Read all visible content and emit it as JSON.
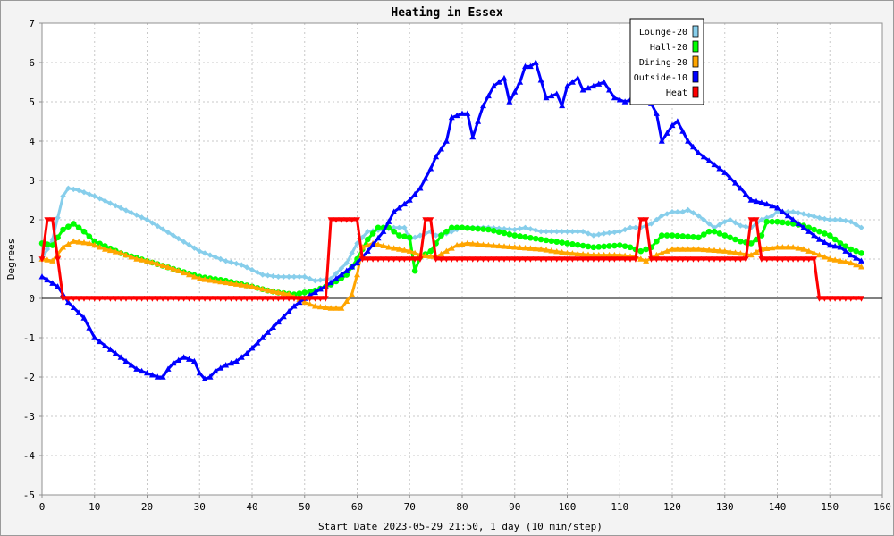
{
  "chart_data": {
    "type": "line",
    "title": "Heating in Essex",
    "xlabel": "Start Date 2023-05-29 21:50, 1 day (10 min/step)",
    "ylabel": "Degrees",
    "xlim": [
      0,
      160
    ],
    "ylim": [
      -5,
      7
    ],
    "xticks": [
      0,
      10,
      20,
      30,
      40,
      50,
      60,
      70,
      80,
      90,
      100,
      110,
      120,
      130,
      140,
      150,
      160
    ],
    "yticks": [
      -5,
      -4,
      -3,
      -2,
      -1,
      0,
      1,
      2,
      3,
      4,
      5,
      6,
      7
    ],
    "grid": true,
    "legend_position": "top-right",
    "series": [
      {
        "name": "Lounge-20",
        "color": "#87ceeb",
        "marker": "diamond",
        "points": [
          [
            0,
            1.0
          ],
          [
            2,
            1.5
          ],
          [
            4,
            2.6
          ],
          [
            5,
            2.8
          ],
          [
            7,
            2.75
          ],
          [
            10,
            2.6
          ],
          [
            15,
            2.3
          ],
          [
            20,
            2.0
          ],
          [
            25,
            1.6
          ],
          [
            30,
            1.2
          ],
          [
            35,
            0.95
          ],
          [
            38,
            0.85
          ],
          [
            42,
            0.6
          ],
          [
            45,
            0.55
          ],
          [
            50,
            0.55
          ],
          [
            52,
            0.45
          ],
          [
            55,
            0.5
          ],
          [
            58,
            0.9
          ],
          [
            60,
            1.4
          ],
          [
            62,
            1.7
          ],
          [
            65,
            1.75
          ],
          [
            67,
            1.8
          ],
          [
            69,
            1.8
          ],
          [
            70,
            1.5
          ],
          [
            72,
            1.6
          ],
          [
            74,
            1.7
          ],
          [
            75,
            1.6
          ],
          [
            77,
            1.65
          ],
          [
            80,
            1.8
          ],
          [
            85,
            1.8
          ],
          [
            90,
            1.75
          ],
          [
            92,
            1.8
          ],
          [
            95,
            1.7
          ],
          [
            100,
            1.7
          ],
          [
            103,
            1.7
          ],
          [
            105,
            1.6
          ],
          [
            107,
            1.65
          ],
          [
            110,
            1.7
          ],
          [
            112,
            1.8
          ],
          [
            114,
            1.8
          ],
          [
            116,
            1.9
          ],
          [
            118,
            2.1
          ],
          [
            120,
            2.2
          ],
          [
            122,
            2.2
          ],
          [
            123,
            2.25
          ],
          [
            125,
            2.1
          ],
          [
            127,
            1.9
          ],
          [
            128,
            1.8
          ],
          [
            130,
            1.95
          ],
          [
            131,
            2.0
          ],
          [
            133,
            1.85
          ],
          [
            135,
            1.8
          ],
          [
            137,
            2.0
          ],
          [
            139,
            2.1
          ],
          [
            140,
            2.2
          ],
          [
            143,
            2.2
          ],
          [
            145,
            2.15
          ],
          [
            148,
            2.05
          ],
          [
            150,
            2.0
          ],
          [
            152,
            2.0
          ],
          [
            154,
            1.95
          ],
          [
            156,
            1.8
          ]
        ]
      },
      {
        "name": "Hall-20",
        "color": "#00ff00",
        "marker": "circle",
        "points": [
          [
            0,
            1.4
          ],
          [
            2,
            1.35
          ],
          [
            4,
            1.75
          ],
          [
            6,
            1.9
          ],
          [
            8,
            1.7
          ],
          [
            10,
            1.45
          ],
          [
            15,
            1.15
          ],
          [
            20,
            0.95
          ],
          [
            25,
            0.75
          ],
          [
            30,
            0.55
          ],
          [
            35,
            0.45
          ],
          [
            40,
            0.3
          ],
          [
            43,
            0.2
          ],
          [
            45,
            0.15
          ],
          [
            48,
            0.1
          ],
          [
            50,
            0.15
          ],
          [
            52,
            0.2
          ],
          [
            55,
            0.35
          ],
          [
            58,
            0.6
          ],
          [
            60,
            1.0
          ],
          [
            62,
            1.5
          ],
          [
            64,
            1.8
          ],
          [
            66,
            1.8
          ],
          [
            68,
            1.6
          ],
          [
            70,
            1.55
          ],
          [
            71,
            0.7
          ],
          [
            72,
            1.05
          ],
          [
            74,
            1.2
          ],
          [
            76,
            1.6
          ],
          [
            78,
            1.8
          ],
          [
            80,
            1.8
          ],
          [
            85,
            1.75
          ],
          [
            90,
            1.6
          ],
          [
            95,
            1.5
          ],
          [
            100,
            1.4
          ],
          [
            105,
            1.3
          ],
          [
            110,
            1.35
          ],
          [
            112,
            1.3
          ],
          [
            114,
            1.2
          ],
          [
            116,
            1.3
          ],
          [
            118,
            1.6
          ],
          [
            120,
            1.6
          ],
          [
            125,
            1.55
          ],
          [
            127,
            1.7
          ],
          [
            128,
            1.7
          ],
          [
            130,
            1.6
          ],
          [
            133,
            1.45
          ],
          [
            135,
            1.4
          ],
          [
            137,
            1.6
          ],
          [
            138,
            1.95
          ],
          [
            140,
            1.95
          ],
          [
            143,
            1.9
          ],
          [
            145,
            1.85
          ],
          [
            148,
            1.7
          ],
          [
            150,
            1.6
          ],
          [
            152,
            1.4
          ],
          [
            154,
            1.25
          ],
          [
            156,
            1.15
          ]
        ]
      },
      {
        "name": "Dining-20",
        "color": "#ffa500",
        "marker": "triangle",
        "points": [
          [
            0,
            1.0
          ],
          [
            2,
            0.95
          ],
          [
            4,
            1.3
          ],
          [
            6,
            1.45
          ],
          [
            9,
            1.4
          ],
          [
            12,
            1.25
          ],
          [
            15,
            1.15
          ],
          [
            18,
            1.0
          ],
          [
            20,
            0.95
          ],
          [
            25,
            0.75
          ],
          [
            30,
            0.5
          ],
          [
            35,
            0.4
          ],
          [
            40,
            0.3
          ],
          [
            43,
            0.2
          ],
          [
            47,
            0.1
          ],
          [
            50,
            -0.1
          ],
          [
            52,
            -0.2
          ],
          [
            55,
            -0.25
          ],
          [
            57,
            -0.25
          ],
          [
            59,
            0.1
          ],
          [
            60,
            0.6
          ],
          [
            61,
            1.3
          ],
          [
            63,
            1.4
          ],
          [
            66,
            1.3
          ],
          [
            70,
            1.2
          ],
          [
            72,
            1.1
          ],
          [
            75,
            1.05
          ],
          [
            77,
            1.2
          ],
          [
            79,
            1.35
          ],
          [
            81,
            1.4
          ],
          [
            85,
            1.35
          ],
          [
            90,
            1.3
          ],
          [
            95,
            1.25
          ],
          [
            100,
            1.15
          ],
          [
            105,
            1.1
          ],
          [
            110,
            1.1
          ],
          [
            113,
            1.05
          ],
          [
            115,
            0.95
          ],
          [
            117,
            1.1
          ],
          [
            120,
            1.25
          ],
          [
            125,
            1.25
          ],
          [
            130,
            1.2
          ],
          [
            135,
            1.1
          ],
          [
            137,
            1.25
          ],
          [
            140,
            1.3
          ],
          [
            143,
            1.3
          ],
          [
            145,
            1.25
          ],
          [
            148,
            1.1
          ],
          [
            150,
            1.0
          ],
          [
            152,
            0.95
          ],
          [
            154,
            0.9
          ],
          [
            156,
            0.8
          ]
        ]
      },
      {
        "name": "Outside-10",
        "color": "#0000ff",
        "marker": "triangle",
        "points": [
          [
            0,
            0.55
          ],
          [
            3,
            0.3
          ],
          [
            5,
            -0.1
          ],
          [
            8,
            -0.5
          ],
          [
            10,
            -1.0
          ],
          [
            13,
            -1.3
          ],
          [
            15,
            -1.5
          ],
          [
            18,
            -1.8
          ],
          [
            20,
            -1.9
          ],
          [
            22,
            -2.0
          ],
          [
            23,
            -2.0
          ],
          [
            24,
            -1.8
          ],
          [
            25,
            -1.65
          ],
          [
            27,
            -1.5
          ],
          [
            29,
            -1.6
          ],
          [
            30,
            -1.9
          ],
          [
            31,
            -2.05
          ],
          [
            32,
            -2.0
          ],
          [
            33,
            -1.85
          ],
          [
            35,
            -1.7
          ],
          [
            37,
            -1.6
          ],
          [
            39,
            -1.4
          ],
          [
            42,
            -1.0
          ],
          [
            45,
            -0.6
          ],
          [
            48,
            -0.2
          ],
          [
            50,
            0.0
          ],
          [
            52,
            0.15
          ],
          [
            55,
            0.4
          ],
          [
            58,
            0.7
          ],
          [
            60,
            0.9
          ],
          [
            62,
            1.2
          ],
          [
            65,
            1.7
          ],
          [
            67,
            2.2
          ],
          [
            70,
            2.5
          ],
          [
            72,
            2.8
          ],
          [
            74,
            3.3
          ],
          [
            75,
            3.6
          ],
          [
            77,
            4.0
          ],
          [
            78,
            4.6
          ],
          [
            80,
            4.7
          ],
          [
            81,
            4.7
          ],
          [
            82,
            4.1
          ],
          [
            84,
            4.9
          ],
          [
            86,
            5.4
          ],
          [
            88,
            5.6
          ],
          [
            89,
            5.0
          ],
          [
            91,
            5.5
          ],
          [
            92,
            5.9
          ],
          [
            93,
            5.9
          ],
          [
            94,
            6.0
          ],
          [
            96,
            5.1
          ],
          [
            98,
            5.2
          ],
          [
            99,
            4.9
          ],
          [
            100,
            5.4
          ],
          [
            102,
            5.6
          ],
          [
            103,
            5.3
          ],
          [
            105,
            5.4
          ],
          [
            107,
            5.5
          ],
          [
            109,
            5.1
          ],
          [
            111,
            5.0
          ],
          [
            113,
            5.1
          ],
          [
            115,
            5.2
          ],
          [
            117,
            4.7
          ],
          [
            118,
            4.0
          ],
          [
            120,
            4.4
          ],
          [
            121,
            4.5
          ],
          [
            123,
            4.0
          ],
          [
            125,
            3.7
          ],
          [
            130,
            3.2
          ],
          [
            133,
            2.8
          ],
          [
            135,
            2.5
          ],
          [
            138,
            2.4
          ],
          [
            140,
            2.3
          ],
          [
            143,
            2.0
          ],
          [
            145,
            1.8
          ],
          [
            148,
            1.5
          ],
          [
            150,
            1.35
          ],
          [
            152,
            1.3
          ],
          [
            154,
            1.1
          ],
          [
            156,
            0.95
          ]
        ]
      },
      {
        "name": "Heat",
        "color": "#ff0000",
        "marker": "triangle-down",
        "points": [
          [
            0,
            1.0
          ],
          [
            1,
            2.0
          ],
          [
            2,
            2.0
          ],
          [
            3,
            1.0
          ],
          [
            4,
            0.0
          ],
          [
            10,
            0.0
          ],
          [
            20,
            0.0
          ],
          [
            30,
            0.0
          ],
          [
            40,
            0.0
          ],
          [
            50,
            0.0
          ],
          [
            54,
            0.0
          ],
          [
            55,
            2.0
          ],
          [
            60,
            2.0
          ],
          [
            61,
            1.0
          ],
          [
            70,
            1.0
          ],
          [
            72,
            1.0
          ],
          [
            73,
            2.0
          ],
          [
            74,
            2.0
          ],
          [
            75,
            1.0
          ],
          [
            80,
            1.0
          ],
          [
            90,
            1.0
          ],
          [
            100,
            1.0
          ],
          [
            110,
            1.0
          ],
          [
            113,
            1.0
          ],
          [
            114,
            2.0
          ],
          [
            115,
            2.0
          ],
          [
            116,
            1.0
          ],
          [
            120,
            1.0
          ],
          [
            125,
            1.0
          ],
          [
            130,
            1.0
          ],
          [
            134,
            1.0
          ],
          [
            135,
            2.0
          ],
          [
            136,
            2.0
          ],
          [
            137,
            1.0
          ],
          [
            140,
            1.0
          ],
          [
            145,
            1.0
          ],
          [
            147,
            1.0
          ],
          [
            148,
            0.0
          ],
          [
            150,
            0.0
          ],
          [
            156,
            0.0
          ]
        ]
      }
    ]
  }
}
